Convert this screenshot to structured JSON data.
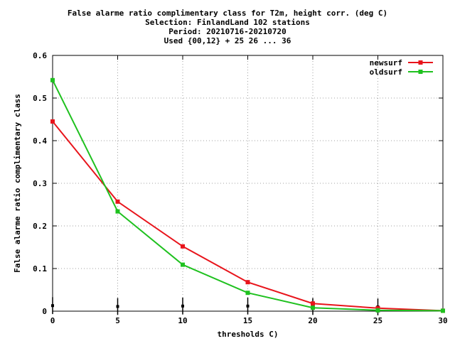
{
  "chart_data": {
    "type": "line",
    "title_lines": [
      "False alarme ratio complimentary class  for T2m, height corr. (deg C)",
      "Selection: FinlandLand    102 stations",
      "Period: 20210716-20210720",
      "Used {00,12} + 25 26 ... 36"
    ],
    "xlabel": "thresholds C)",
    "ylabel": "False alarme ratio complimentary class",
    "xlim": [
      0,
      30
    ],
    "ylim": [
      0,
      0.6
    ],
    "xticks": [
      0,
      5,
      10,
      15,
      20,
      25,
      30
    ],
    "yticks": [
      0,
      0.1,
      0.2,
      0.3,
      0.4,
      0.5,
      0.6
    ],
    "grid": true,
    "legend_position": "top-right",
    "x": [
      0,
      5,
      10,
      15,
      20,
      25,
      30
    ],
    "series": [
      {
        "name": "newsurf",
        "color": "#e8141b",
        "values": [
          0.445,
          0.257,
          0.152,
          0.068,
          0.018,
          0.007,
          0.001
        ]
      },
      {
        "name": "oldsurf",
        "color": "#1fc11f",
        "values": [
          0.542,
          0.234,
          0.109,
          0.043,
          0.008,
          0.002,
          0.001
        ]
      }
    ],
    "errorbars": {
      "x": [
        0,
        5,
        10,
        15,
        20,
        25,
        30
      ],
      "values": [
        0.013,
        0.011,
        0.012,
        0.012,
        0.011,
        0.01,
        0.0
      ]
    }
  }
}
